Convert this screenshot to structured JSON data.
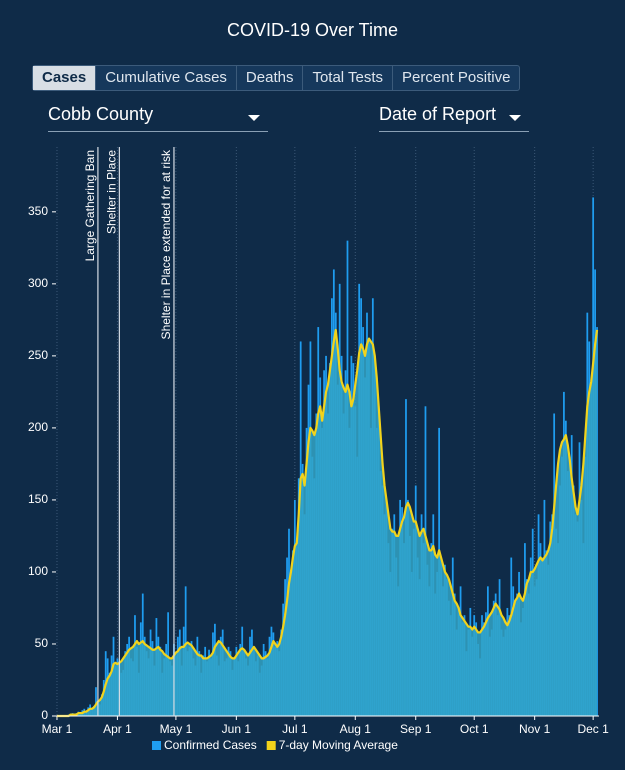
{
  "header": {
    "title": "COVID-19 Over Time"
  },
  "tabs": [
    "Cases",
    "Cumulative Cases",
    "Deaths",
    "Total Tests",
    "Percent Positive"
  ],
  "dropdowns": {
    "region": "Cobb County",
    "date_type": "Date of Report"
  },
  "chart_data": {
    "type": "bar_line",
    "xlim": [
      -0.5,
      278
    ],
    "xticks": [
      {
        "value": 0,
        "label": "Mar 1"
      },
      {
        "value": 31,
        "label": "Apr 1"
      },
      {
        "value": 61,
        "label": "May 1"
      },
      {
        "value": 92,
        "label": "Jun 1"
      },
      {
        "value": 122,
        "label": "Jul 1"
      },
      {
        "value": 153,
        "label": "Aug 1"
      },
      {
        "value": 184,
        "label": "Sep 1"
      },
      {
        "value": 214,
        "label": "Oct 1"
      },
      {
        "value": 245,
        "label": "Nov 1"
      },
      {
        "value": 275,
        "label": "Dec 1"
      }
    ],
    "ylim": [
      0,
      395
    ],
    "yticks": [
      0,
      50,
      100,
      150,
      200,
      250,
      300,
      350
    ],
    "grid": "x",
    "legend": "bottom",
    "annotations": [
      {
        "x": 21,
        "label": "Large Gathering Ban"
      },
      {
        "x": 32,
        "label": "Shelter in Place"
      },
      {
        "x": 60,
        "label": "Shelter in Place extended for at risk"
      }
    ],
    "series": [
      {
        "name": "Confirmed Cases",
        "color": "#1f9df0",
        "values": [
          0,
          0,
          0,
          0,
          0,
          0,
          1,
          1,
          2,
          1,
          2,
          3,
          2,
          4,
          5,
          3,
          6,
          8,
          5,
          7,
          20,
          10,
          8,
          15,
          25,
          45,
          40,
          30,
          42,
          55,
          35,
          40,
          38,
          30,
          32,
          45,
          50,
          55,
          40,
          38,
          70,
          48,
          30,
          65,
          85,
          55,
          45,
          40,
          60,
          52,
          35,
          68,
          55,
          48,
          30,
          40,
          50,
          72,
          38,
          35,
          50,
          42,
          55,
          60,
          35,
          62,
          90,
          45,
          48,
          52,
          40,
          35,
          55,
          45,
          30,
          42,
          48,
          38,
          46,
          40,
          58,
          64,
          42,
          35,
          55,
          60,
          38,
          40,
          48,
          45,
          32,
          40,
          48,
          38,
          50,
          62,
          45,
          40,
          35,
          55,
          60,
          48,
          38,
          42,
          30,
          35,
          50,
          45,
          40,
          55,
          62,
          58,
          48,
          52,
          45,
          60,
          78,
          95,
          110,
          130,
          100,
          115,
          150,
          120,
          165,
          260,
          175,
          140,
          200,
          230,
          260,
          180,
          165,
          210,
          270,
          235,
          200,
          240,
          250,
          210,
          245,
          290,
          310,
          280,
          230,
          300,
          250,
          210,
          240,
          330,
          200,
          250,
          245,
          215,
          180,
          300,
          290,
          270,
          235,
          280,
          260,
          200,
          290,
          250,
          200,
          215,
          170,
          160,
          140,
          150,
          120,
          100,
          130,
          140,
          110,
          90,
          150,
          145,
          120,
          220,
          150,
          125,
          100,
          130,
          160,
          110,
          95,
          140,
          120,
          215,
          105,
          90,
          120,
          140,
          85,
          100,
          200,
          110,
          90,
          105,
          95,
          80,
          70,
          110,
          85,
          60,
          75,
          90,
          65,
          70,
          45,
          60,
          75,
          55,
          70,
          65,
          50,
          40,
          70,
          65,
          72,
          90,
          55,
          60,
          80,
          85,
          70,
          95,
          60,
          55,
          60,
          75,
          70,
          110,
          90,
          80,
          85,
          100,
          65,
          75,
          120,
          95,
          85,
          110,
          130,
          90,
          95,
          140,
          120,
          110,
          150,
          115,
          105,
          135,
          140,
          210,
          130,
          120,
          160,
          180,
          225,
          205,
          170,
          180,
          195,
          160,
          140,
          135,
          190,
          150,
          120,
          180,
          280,
          260,
          230,
          360,
          310,
          270
        ]
      },
      {
        "name": "7-day Moving Average",
        "color": "#f2d31b",
        "values": [
          0,
          0,
          0,
          0,
          0,
          0,
          0,
          1,
          1,
          1,
          1,
          2,
          2,
          2,
          3,
          3,
          4,
          5,
          5,
          6,
          8,
          10,
          11,
          13,
          17,
          22,
          26,
          28,
          31,
          36,
          37,
          36,
          37,
          38,
          40,
          42,
          44,
          46,
          47,
          48,
          50,
          52,
          50,
          51,
          52,
          50,
          49,
          48,
          47,
          46,
          46,
          47,
          48,
          46,
          45,
          43,
          42,
          41,
          40,
          40,
          42,
          44,
          45,
          47,
          48,
          48,
          50,
          51,
          50,
          49,
          47,
          45,
          43,
          42,
          42,
          40,
          40,
          40,
          41,
          42,
          44,
          48,
          50,
          52,
          51,
          49,
          47,
          45,
          43,
          41,
          40,
          40,
          42,
          44,
          46,
          47,
          46,
          44,
          42,
          44,
          46,
          48,
          46,
          44,
          42,
          40,
          40,
          41,
          42,
          44,
          48,
          52,
          50,
          48,
          50,
          55,
          62,
          70,
          80,
          92,
          100,
          110,
          118,
          120,
          140,
          165,
          168,
          160,
          175,
          190,
          200,
          198,
          195,
          200,
          210,
          215,
          205,
          215,
          225,
          230,
          240,
          250,
          260,
          268,
          255,
          240,
          232,
          228,
          225,
          230,
          225,
          215,
          220,
          230,
          240,
          252,
          258,
          255,
          250,
          258,
          262,
          260,
          258,
          250,
          235,
          215,
          195,
          175,
          160,
          150,
          140,
          130,
          128,
          128,
          125,
          125,
          130,
          135,
          138,
          145,
          148,
          145,
          140,
          135,
          135,
          130,
          125,
          128,
          130,
          125,
          120,
          115,
          115,
          118,
          112,
          110,
          115,
          110,
          105,
          100,
          98,
          95,
          90,
          85,
          80,
          78,
          75,
          70,
          68,
          66,
          64,
          62,
          62,
          60,
          62,
          60,
          58,
          58,
          60,
          62,
          65,
          68,
          70,
          72,
          75,
          78,
          76,
          74,
          70,
          68,
          65,
          63,
          66,
          70,
          75,
          80,
          82,
          85,
          82,
          80,
          85,
          92,
          95,
          100,
          100,
          102,
          105,
          108,
          110,
          108,
          110,
          112,
          115,
          120,
          130,
          145,
          160,
          175,
          185,
          190,
          192,
          195,
          188,
          178,
          165,
          155,
          145,
          140,
          150,
          160,
          175,
          195,
          215,
          225,
          232,
          245,
          258,
          268
        ]
      }
    ]
  }
}
